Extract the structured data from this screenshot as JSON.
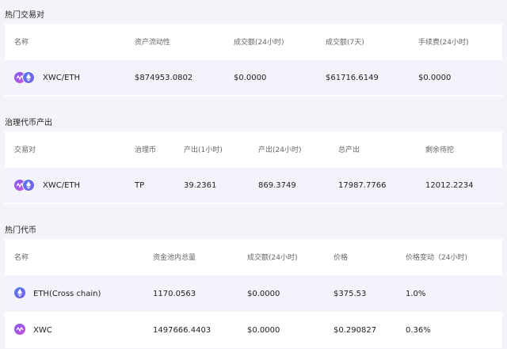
{
  "sections": {
    "hot_pairs": {
      "title": "热门交易对",
      "headers": [
        "名称",
        "资产流动性",
        "成交额(24小时)",
        "成交额(7天)",
        "手续费(24小时)"
      ],
      "rows": [
        {
          "pair": "XWC/ETH",
          "liquidity": "$874953.0802",
          "vol24": "$0.0000",
          "vol7d": "$61716.6149",
          "fee24": "$0.0000"
        }
      ]
    },
    "governance": {
      "title": "治理代币产出",
      "headers": [
        "交易对",
        "治理币",
        "产出(1小时)",
        "产出(24小时)",
        "总产出",
        "剩余待挖"
      ],
      "rows": [
        {
          "pair": "XWC/ETH",
          "token": "TP",
          "out1h": "39.2361",
          "out24h": "869.3749",
          "total": "17987.7766",
          "remaining": "12012.2234"
        }
      ]
    },
    "hot_tokens": {
      "title": "热门代币",
      "headers": [
        "名称",
        "资金池内总量",
        "成交额(24小时)",
        "价格",
        "价格变动（24小时)"
      ],
      "rows": [
        {
          "name": "ETH(Cross chain)",
          "pool": "1170.0563",
          "vol24": "$0.0000",
          "price": "$375.53",
          "change": "1.0%",
          "icon": "eth-icon"
        },
        {
          "name": "XWC",
          "pool": "1497666.4403",
          "vol24": "$0.0000",
          "price": "$0.290827",
          "change": "0.36%",
          "icon": "xwc-icon"
        }
      ]
    }
  },
  "colors": {
    "page_bg": "#f4f4f8",
    "row_bg": "#f3f3fb",
    "accent": "#7b5cf0"
  }
}
